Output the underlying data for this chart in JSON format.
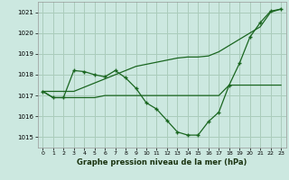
{
  "title": "Graphe pression niveau de la mer (hPa)",
  "background_color": "#cce8e0",
  "grid_color": "#aaccbb",
  "line_color": "#1a6620",
  "xlim": [
    -0.5,
    23.5
  ],
  "ylim": [
    1014.5,
    1021.5
  ],
  "yticks": [
    1015,
    1016,
    1017,
    1018,
    1019,
    1020,
    1021
  ],
  "xticks": [
    0,
    1,
    2,
    3,
    4,
    5,
    6,
    7,
    8,
    9,
    10,
    11,
    12,
    13,
    14,
    15,
    16,
    17,
    18,
    19,
    20,
    21,
    22,
    23
  ],
  "y_main": [
    1017.2,
    1016.9,
    1016.9,
    1018.2,
    1018.15,
    1018.0,
    1017.9,
    1018.2,
    1017.85,
    1017.35,
    1016.65,
    1016.35,
    1015.8,
    1015.25,
    1015.1,
    1015.1,
    1015.75,
    1016.2,
    1017.5,
    1018.55,
    1019.8,
    1020.5,
    1021.05,
    1021.15
  ],
  "y_upper": [
    1017.2,
    1017.2,
    1017.2,
    1017.2,
    1017.4,
    1017.6,
    1017.8,
    1018.0,
    1018.2,
    1018.4,
    1018.5,
    1018.6,
    1018.7,
    1018.8,
    1018.85,
    1018.85,
    1018.9,
    1019.1,
    1019.4,
    1019.7,
    1020.0,
    1020.3,
    1021.0,
    1021.15
  ],
  "y_lower": [
    1017.2,
    1016.9,
    1016.9,
    1016.9,
    1016.9,
    1016.9,
    1017.0,
    1017.0,
    1017.0,
    1017.0,
    1017.0,
    1017.0,
    1017.0,
    1017.0,
    1017.0,
    1017.0,
    1017.0,
    1017.0,
    1017.5,
    1017.5,
    1017.5,
    1017.5,
    1017.5,
    1017.5
  ]
}
